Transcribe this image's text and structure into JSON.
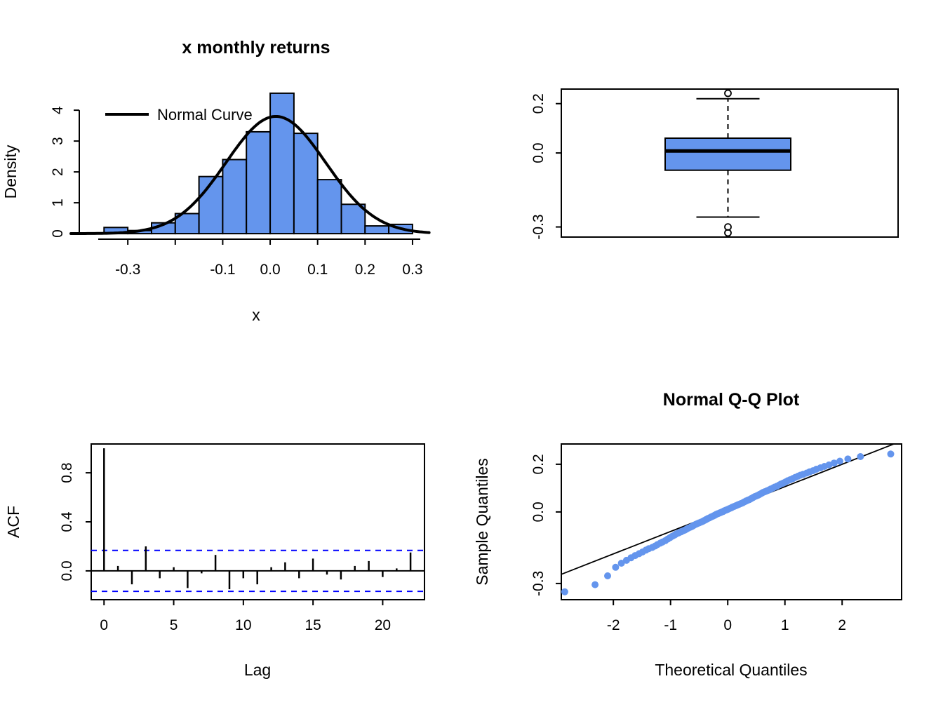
{
  "figure": {
    "background": "#ffffff",
    "accent_color": "#6495ED",
    "band_color": "#0000FF"
  },
  "chart_data": [
    {
      "id": "histogram",
      "type": "bar",
      "subtype": "histogram",
      "title": "x monthly returns",
      "xlabel": "x",
      "ylabel": "Density",
      "legend": [
        {
          "label": "Normal Curve",
          "color": "#000000"
        }
      ],
      "bar_fill": "#6495ED",
      "bar_stroke": "#000000",
      "bin_start": -0.35,
      "bin_width": 0.05,
      "densities": [
        0.2,
        0.1,
        0.35,
        0.65,
        1.85,
        2.4,
        3.3,
        4.55,
        3.25,
        1.75,
        0.95,
        0.25,
        0.3
      ],
      "normal_curve": {
        "mean": 0.012,
        "sd": 0.105
      },
      "xlim": [
        -0.42,
        0.34
      ],
      "ylim": [
        -0.18,
        4.73
      ],
      "x_ticks": [
        {
          "v": -0.3,
          "label": "-0.3"
        },
        {
          "v": -0.2,
          "label": ""
        },
        {
          "v": -0.1,
          "label": "-0.1"
        },
        {
          "v": 0,
          "label": "0.0"
        },
        {
          "v": 0.1,
          "label": "0.1"
        },
        {
          "v": 0.2,
          "label": "0.2"
        },
        {
          "v": 0.3,
          "label": "0.3"
        }
      ],
      "y_ticks": [
        {
          "v": 0,
          "label": "0"
        },
        {
          "v": 1,
          "label": "1"
        },
        {
          "v": 2,
          "label": "2"
        },
        {
          "v": 3,
          "label": "3"
        },
        {
          "v": 4,
          "label": "4"
        }
      ],
      "grid": false,
      "legend_position": "top-left"
    },
    {
      "id": "boxplot",
      "type": "boxplot",
      "orientation": "vertical",
      "box_fill": "#6495ED",
      "stats": {
        "lower_whisker": -0.26,
        "q1": -0.07,
        "median": 0.008,
        "q3": 0.06,
        "upper_whisker": 0.22
      },
      "outliers": [
        0.242,
        -0.3,
        -0.324
      ],
      "ylim": [
        -0.341,
        0.259
      ],
      "y_ticks": [
        {
          "v": 0.2,
          "label": "0.2"
        },
        {
          "v": 0,
          "label": "0.0"
        },
        {
          "v": -0.3,
          "label": "-0.3"
        }
      ],
      "grid": false
    },
    {
      "id": "acf",
      "type": "bar",
      "subtype": "acf",
      "xlabel": "Lag",
      "ylabel": "ACF",
      "values": [
        1.0,
        0.04,
        -0.11,
        0.2,
        -0.06,
        0.03,
        -0.14,
        -0.02,
        0.13,
        -0.15,
        -0.06,
        -0.11,
        0.03,
        0.07,
        -0.06,
        0.1,
        -0.03,
        -0.07,
        0.04,
        0.08,
        -0.05,
        0.02,
        0.15
      ],
      "conf_band": 0.167,
      "band_color": "#0000FF",
      "xlim": [
        -0.92,
        23.0
      ],
      "ylim": [
        -0.235,
        1.035
      ],
      "x_ticks": [
        {
          "v": 0,
          "label": "0"
        },
        {
          "v": 5,
          "label": "5"
        },
        {
          "v": 10,
          "label": "10"
        },
        {
          "v": 15,
          "label": "15"
        },
        {
          "v": 20,
          "label": "20"
        }
      ],
      "y_ticks": [
        {
          "v": 0,
          "label": "0.0"
        },
        {
          "v": 0.4,
          "label": "0.4"
        },
        {
          "v": 0.8,
          "label": "0.8"
        }
      ],
      "grid": false
    },
    {
      "id": "qqplot",
      "type": "scatter",
      "title": "Normal Q-Q Plot",
      "xlabel": "Theoretical Quantiles",
      "ylabel": "Sample Quantiles",
      "point_color": "#6495ED",
      "ref_line": {
        "intercept": 0.012,
        "slope": 0.094
      },
      "xlim": [
        -2.91,
        3.04
      ],
      "ylim": [
        -0.368,
        0.285
      ],
      "x_ticks": [
        {
          "v": -2,
          "label": "-2"
        },
        {
          "v": -1,
          "label": "-1"
        },
        {
          "v": 0,
          "label": "0"
        },
        {
          "v": 1,
          "label": "1"
        },
        {
          "v": 2,
          "label": "2"
        }
      ],
      "y_ticks": [
        {
          "v": 0.2,
          "label": "0.2"
        },
        {
          "v": 0,
          "label": "0.0"
        },
        {
          "v": -0.3,
          "label": "-0.3"
        }
      ],
      "grid": false,
      "points": [
        [
          -2.85,
          -0.335
        ],
        [
          -2.32,
          -0.305
        ],
        [
          -2.1,
          -0.268
        ],
        [
          -1.96,
          -0.232
        ],
        [
          -1.86,
          -0.215
        ],
        [
          -1.77,
          -0.203
        ],
        [
          -1.69,
          -0.192
        ],
        [
          -1.62,
          -0.183
        ],
        [
          -1.55,
          -0.175
        ],
        [
          -1.49,
          -0.168
        ],
        [
          -1.43,
          -0.16
        ],
        [
          -1.38,
          -0.154
        ],
        [
          -1.32,
          -0.149
        ],
        [
          -1.27,
          -0.143
        ],
        [
          -1.23,
          -0.137
        ],
        [
          -1.18,
          -0.131
        ],
        [
          -1.14,
          -0.126
        ],
        [
          -1.09,
          -0.12
        ],
        [
          -1.05,
          -0.114
        ],
        [
          -1.01,
          -0.108
        ],
        [
          -0.97,
          -0.102
        ],
        [
          -0.93,
          -0.097
        ],
        [
          -0.9,
          -0.092
        ],
        [
          -0.86,
          -0.088
        ],
        [
          -0.82,
          -0.084
        ],
        [
          -0.79,
          -0.08
        ],
        [
          -0.75,
          -0.076
        ],
        [
          -0.72,
          -0.072
        ],
        [
          -0.69,
          -0.068
        ],
        [
          -0.65,
          -0.064
        ],
        [
          -0.62,
          -0.06
        ],
        [
          -0.59,
          -0.056
        ],
        [
          -0.56,
          -0.052
        ],
        [
          -0.53,
          -0.049
        ],
        [
          -0.5,
          -0.046
        ],
        [
          -0.47,
          -0.043
        ],
        [
          -0.44,
          -0.04
        ],
        [
          -0.41,
          -0.036
        ],
        [
          -0.38,
          -0.032
        ],
        [
          -0.35,
          -0.028
        ],
        [
          -0.32,
          -0.025
        ],
        [
          -0.29,
          -0.021
        ],
        [
          -0.26,
          -0.018
        ],
        [
          -0.23,
          -0.014
        ],
        [
          -0.2,
          -0.01
        ],
        [
          -0.17,
          -0.007
        ],
        [
          -0.14,
          -0.004
        ],
        [
          -0.11,
          -0.001
        ],
        [
          -0.08,
          0.002
        ],
        [
          -0.06,
          0.005
        ],
        [
          -0.03,
          0.008
        ],
        [
          0.0,
          0.011
        ],
        [
          0.03,
          0.014
        ],
        [
          0.06,
          0.017
        ],
        [
          0.08,
          0.02
        ],
        [
          0.11,
          0.023
        ],
        [
          0.14,
          0.026
        ],
        [
          0.17,
          0.029
        ],
        [
          0.2,
          0.032
        ],
        [
          0.23,
          0.035
        ],
        [
          0.26,
          0.038
        ],
        [
          0.29,
          0.042
        ],
        [
          0.32,
          0.046
        ],
        [
          0.35,
          0.049
        ],
        [
          0.38,
          0.052
        ],
        [
          0.41,
          0.056
        ],
        [
          0.44,
          0.06
        ],
        [
          0.47,
          0.064
        ],
        [
          0.5,
          0.067
        ],
        [
          0.53,
          0.07
        ],
        [
          0.56,
          0.074
        ],
        [
          0.59,
          0.078
        ],
        [
          0.62,
          0.082
        ],
        [
          0.65,
          0.085
        ],
        [
          0.69,
          0.089
        ],
        [
          0.72,
          0.092
        ],
        [
          0.75,
          0.096
        ],
        [
          0.79,
          0.1
        ],
        [
          0.82,
          0.104
        ],
        [
          0.86,
          0.108
        ],
        [
          0.9,
          0.113
        ],
        [
          0.93,
          0.117
        ],
        [
          0.97,
          0.121
        ],
        [
          1.01,
          0.126
        ],
        [
          1.05,
          0.131
        ],
        [
          1.09,
          0.135
        ],
        [
          1.14,
          0.14
        ],
        [
          1.18,
          0.145
        ],
        [
          1.23,
          0.15
        ],
        [
          1.27,
          0.154
        ],
        [
          1.32,
          0.158
        ],
        [
          1.38,
          0.163
        ],
        [
          1.43,
          0.168
        ],
        [
          1.49,
          0.173
        ],
        [
          1.55,
          0.179
        ],
        [
          1.62,
          0.185
        ],
        [
          1.69,
          0.191
        ],
        [
          1.77,
          0.197
        ],
        [
          1.86,
          0.205
        ],
        [
          1.96,
          0.213
        ],
        [
          2.1,
          0.222
        ],
        [
          2.32,
          0.232
        ],
        [
          2.85,
          0.243
        ]
      ]
    }
  ]
}
